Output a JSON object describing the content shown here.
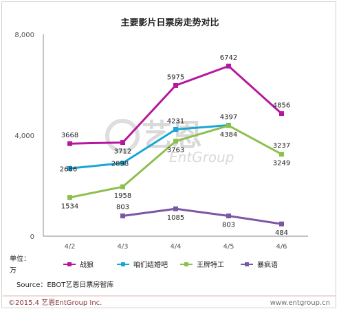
{
  "chart_data": {
    "type": "line",
    "title": "主要影片日票房走势对比",
    "categories": [
      "4/2",
      "4/3",
      "4/4",
      "4/5",
      "4/6"
    ],
    "ylim": [
      0,
      8000
    ],
    "yticks": [
      "0",
      "4,000",
      "8,000"
    ],
    "ytick_values": [
      0,
      4000,
      8000
    ],
    "unit_label": "单位：万",
    "grid": false,
    "legend_position": "bottom",
    "series": [
      {
        "name": "战狼",
        "color": "#b5179e",
        "values": [
          3668,
          3712,
          5975,
          6742,
          4856
        ],
        "labels": [
          "3668",
          "3712",
          "5975",
          "6742",
          "4856"
        ]
      },
      {
        "name": "咱们结婚吧",
        "color": "#1aa6d4",
        "values": [
          2686,
          2898,
          4231,
          4397,
          null
        ],
        "labels": [
          "2686",
          "2898",
          "4231",
          "4397",
          ""
        ]
      },
      {
        "name": "王牌特工",
        "color": "#8cbf4d",
        "values": [
          1534,
          1958,
          3763,
          4384,
          3249
        ],
        "labels": [
          "1534",
          "1958",
          "3763",
          "4384",
          "3249"
        ]
      },
      {
        "name": "暴疯语",
        "color": "#7b57a3",
        "values": [
          null,
          803,
          1085,
          803,
          484
        ],
        "labels": [
          "",
          "803",
          "1085",
          "803",
          "484"
        ]
      }
    ],
    "extra_labels": [
      {
        "text": "3237",
        "category": "4/6",
        "value": 3237
      }
    ],
    "source": "Source：EBOT艺恩日票房智库"
  },
  "footer": {
    "left": "©2015.4 艺恩EntGroup Inc.",
    "right": "www.entgroup.cn"
  },
  "watermark": {
    "logo": "艺恩",
    "text": "EntGroup"
  },
  "unit": {
    "line1": "单位：",
    "line2": "万"
  }
}
